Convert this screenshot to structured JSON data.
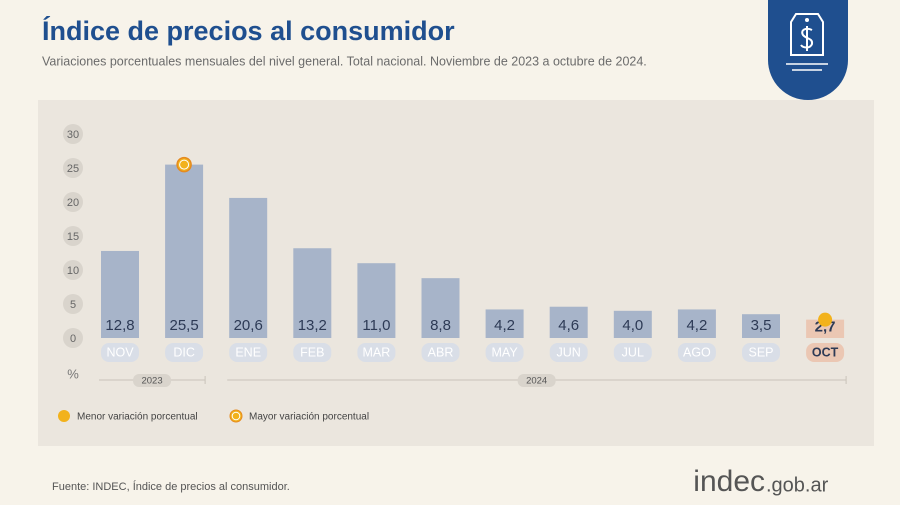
{
  "chart_data": {
    "type": "bar",
    "title": "Índice de precios al consumidor",
    "subtitle": "Variaciones porcentuales mensuales del nivel general. Total nacional. Noviembre de 2023 a octubre de 2024.",
    "y_label": "%",
    "categories": [
      "NOV",
      "DIC",
      "ENE",
      "FEB",
      "MAR",
      "ABR",
      "MAY",
      "JUN",
      "JUL",
      "AGO",
      "SEP",
      "OCT"
    ],
    "values": [
      12.8,
      25.5,
      20.6,
      13.2,
      11.0,
      8.8,
      4.2,
      4.6,
      4.0,
      4.2,
      3.5,
      2.7
    ],
    "value_labels": [
      "12,8",
      "25,5",
      "20,6",
      "13,2",
      "11,0",
      "8,8",
      "4,2",
      "4,6",
      "4,0",
      "4,2",
      "3,5",
      "2,7"
    ],
    "color": "#a7b4c9",
    "highlight_color": "#ebc7b3",
    "ylim": [
      0,
      30
    ],
    "yticks": [
      0,
      5,
      10,
      15,
      20,
      25,
      30
    ],
    "grid": false,
    "year_groups": [
      {
        "label": "2023",
        "categories": [
          "NOV",
          "DIC"
        ]
      },
      {
        "label": "2024",
        "categories": [
          "ENE",
          "FEB",
          "MAR",
          "ABR",
          "MAY",
          "JUN",
          "JUL",
          "AGO",
          "SEP",
          "OCT"
        ]
      }
    ],
    "legend": [
      {
        "label": "Menor variación porcentual",
        "color": "#f2b21c"
      },
      {
        "label": "Mayor variación porcentual",
        "color": "#f2b21c"
      }
    ],
    "source": "Fuente: INDEC, Índice de precios al consumidor."
  },
  "logo": {
    "name": "indec",
    "domain": ".gob.ar"
  }
}
